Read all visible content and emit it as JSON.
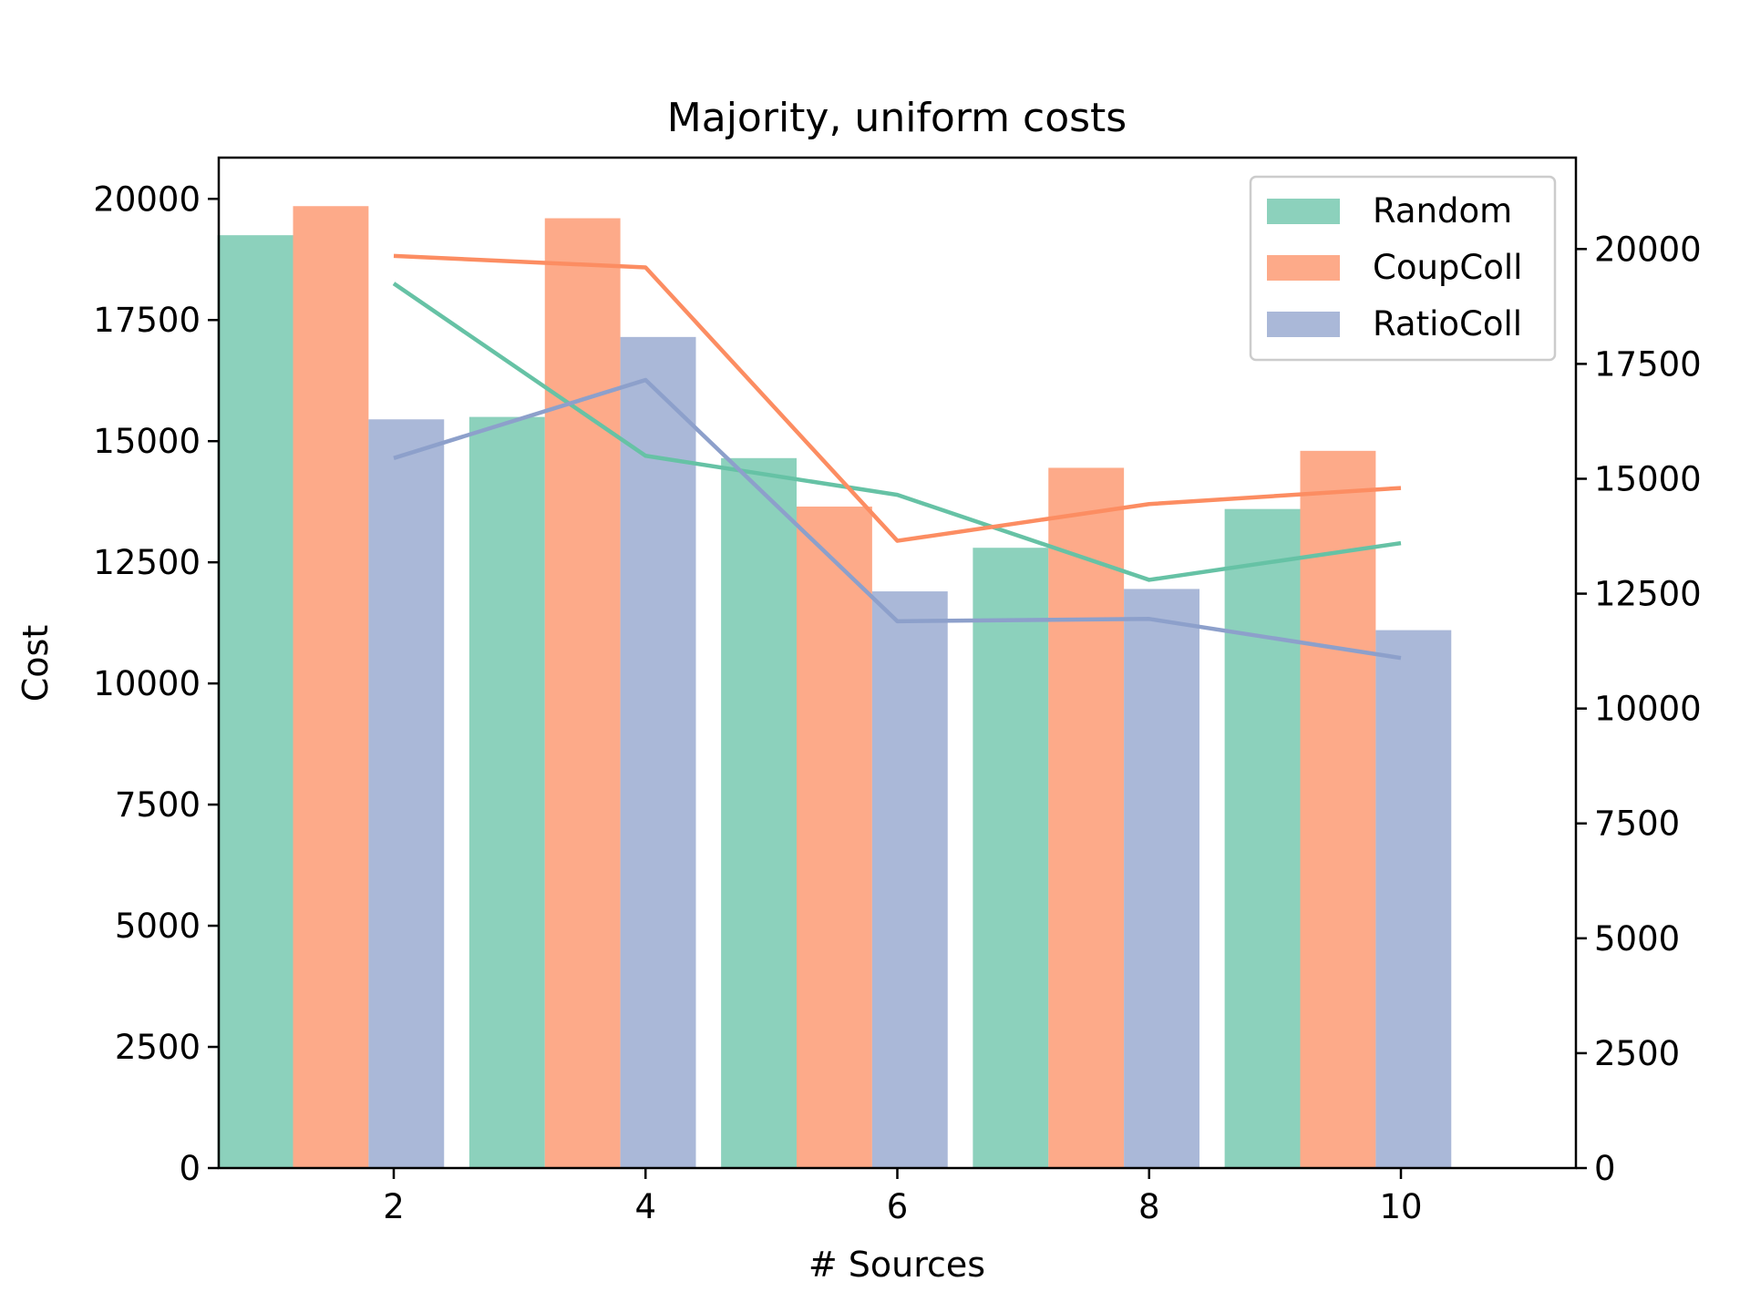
{
  "chart_data": {
    "type": "bar",
    "title": "Majority, uniform costs",
    "xlabel": "# Sources",
    "ylabel": "Cost",
    "y2label": "",
    "categories": [
      "2",
      "4",
      "6",
      "8",
      "10"
    ],
    "x": [
      2,
      4,
      6,
      8,
      10
    ],
    "xticks": [
      "2",
      "4",
      "6",
      "8",
      "10"
    ],
    "xlim": [
      0.61,
      11.39
    ],
    "ylim": [
      0,
      20851
    ],
    "y2lim": [
      0,
      21989
    ],
    "yticks": [
      "0",
      "2500",
      "5000",
      "7500",
      "10000",
      "12500",
      "15000",
      "17500",
      "20000"
    ],
    "y2ticks": [
      "0",
      "2500",
      "5000",
      "7500",
      "10000",
      "12500",
      "15000",
      "17500",
      "20000"
    ],
    "legend_position": "upper right",
    "grid": false,
    "series": [
      {
        "name": "Random",
        "color": "#66c2a5",
        "bar_values": [
          19250,
          15500,
          14650,
          12800,
          13600
        ],
        "line_values": [
          19250,
          15500,
          14650,
          12800,
          13600
        ]
      },
      {
        "name": "CoupColl",
        "color": "#fc8d62",
        "bar_values": [
          19850,
          19600,
          13650,
          14450,
          14800
        ],
        "line_values": [
          19850,
          19600,
          13650,
          14450,
          14800
        ]
      },
      {
        "name": "RatioColl",
        "color": "#8da0cb",
        "bar_values": [
          15450,
          17150,
          11900,
          11950,
          11100
        ],
        "line_values": [
          15450,
          17150,
          11900,
          11950,
          11100
        ]
      }
    ]
  }
}
